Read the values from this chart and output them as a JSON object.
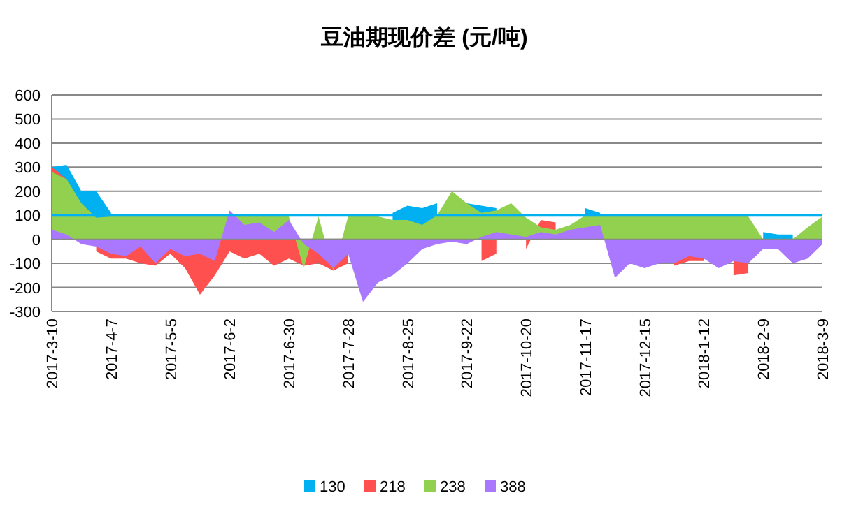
{
  "chart_data": {
    "type": "area",
    "title": "豆油期现价差 (元/吨)",
    "x": [
      "2017-03-10",
      "2017-03-17",
      "2017-03-24",
      "2017-03-31",
      "2017-04-07",
      "2017-04-14",
      "2017-04-21",
      "2017-04-28",
      "2017-05-05",
      "2017-05-12",
      "2017-05-19",
      "2017-05-26",
      "2017-06-02",
      "2017-06-09",
      "2017-06-16",
      "2017-06-23",
      "2017-06-30",
      "2017-07-07",
      "2017-07-14",
      "2017-07-21",
      "2017-07-28",
      "2017-08-04",
      "2017-08-11",
      "2017-08-18",
      "2017-08-25",
      "2017-09-01",
      "2017-09-08",
      "2017-09-15",
      "2017-09-22",
      "2017-09-29",
      "2017-10-06",
      "2017-10-13",
      "2017-10-20",
      "2017-10-27",
      "2017-11-03",
      "2017-11-10",
      "2017-11-17",
      "2017-11-24",
      "2017-12-01",
      "2017-12-08",
      "2017-12-15",
      "2017-12-22",
      "2017-12-29",
      "2018-01-05",
      "2018-01-12",
      "2018-01-19",
      "2018-01-26",
      "2018-02-02",
      "2018-02-09",
      "2018-02-16",
      "2018-02-23",
      "2018-03-02",
      "2018-03-09"
    ],
    "series": [
      {
        "name": "130",
        "color": "#00b0f0",
        "values": [
          300,
          310,
          200,
          200,
          110,
          null,
          null,
          null,
          null,
          null,
          null,
          null,
          null,
          null,
          null,
          null,
          null,
          null,
          null,
          null,
          null,
          null,
          null,
          110,
          140,
          130,
          150,
          null,
          150,
          140,
          130,
          null,
          null,
          null,
          null,
          null,
          130,
          110,
          null,
          null,
          null,
          null,
          null,
          null,
          null,
          null,
          null,
          null,
          30,
          20,
          20,
          null,
          null
        ]
      },
      {
        "name": "218",
        "color": "#ff5050",
        "values": [
          300,
          250,
          null,
          -50,
          -80,
          -80,
          -100,
          -110,
          -60,
          -120,
          -230,
          -150,
          -50,
          -80,
          -60,
          -110,
          -80,
          -110,
          -100,
          -130,
          -100,
          null,
          null,
          null,
          null,
          null,
          null,
          null,
          null,
          -90,
          -60,
          null,
          -40,
          80,
          70,
          null,
          null,
          null,
          null,
          null,
          null,
          null,
          -110,
          -90,
          -90,
          null,
          -150,
          -140,
          null,
          null,
          null,
          null,
          null
        ]
      },
      {
        "name": "238",
        "color": "#92d050",
        "values": [
          280,
          250,
          150,
          90,
          95,
          95,
          95,
          95,
          95,
          95,
          95,
          95,
          95,
          95,
          95,
          95,
          95,
          -120,
          95,
          -130,
          95,
          95,
          95,
          80,
          80,
          60,
          100,
          200,
          150,
          110,
          120,
          150,
          90,
          50,
          40,
          60,
          100,
          105,
          95,
          95,
          95,
          95,
          95,
          95,
          95,
          95,
          95,
          95,
          0,
          0,
          0,
          50,
          95
        ]
      },
      {
        "name": "388",
        "color": "#aa77ff",
        "values": [
          40,
          20,
          -20,
          -30,
          -60,
          -70,
          -30,
          -100,
          -40,
          -70,
          -60,
          -90,
          120,
          60,
          70,
          30,
          80,
          -20,
          -60,
          -120,
          -60,
          -260,
          -180,
          -150,
          -100,
          -40,
          -20,
          -10,
          -20,
          10,
          30,
          20,
          10,
          30,
          20,
          40,
          50,
          60,
          -160,
          -100,
          -120,
          -100,
          -100,
          -70,
          -80,
          -120,
          -90,
          -100,
          -40,
          -40,
          -100,
          -80,
          -20
        ]
      }
    ],
    "xlim": [
      "2017-03-10",
      "2018-03-09"
    ],
    "xticks": [
      {
        "value": "2017-03-10",
        "label": "2017-3-10"
      },
      {
        "value": "2017-04-07",
        "label": "2017-4-7"
      },
      {
        "value": "2017-05-05",
        "label": "2017-5-5"
      },
      {
        "value": "2017-06-02",
        "label": "2017-6-2"
      },
      {
        "value": "2017-06-30",
        "label": "2017-6-30"
      },
      {
        "value": "2017-07-28",
        "label": "2017-7-28"
      },
      {
        "value": "2017-08-25",
        "label": "2017-8-25"
      },
      {
        "value": "2017-09-22",
        "label": "2017-9-22"
      },
      {
        "value": "2017-10-20",
        "label": "2017-10-20"
      },
      {
        "value": "2017-11-17",
        "label": "2017-11-17"
      },
      {
        "value": "2017-12-15",
        "label": "2017-12-15"
      },
      {
        "value": "2018-01-12",
        "label": "2018-1-12"
      },
      {
        "value": "2018-02-09",
        "label": "2018-2-9"
      },
      {
        "value": "2018-03-09",
        "label": "2018-3-9"
      }
    ],
    "ylim": [
      -300,
      600
    ],
    "yticks": [
      -300,
      -200,
      -100,
      0,
      100,
      200,
      300,
      400,
      500,
      600
    ],
    "ref_lines": [
      {
        "axis": "y",
        "value": 100,
        "color": "#00b0f0"
      }
    ],
    "grid": "y",
    "legend": "bottom"
  }
}
